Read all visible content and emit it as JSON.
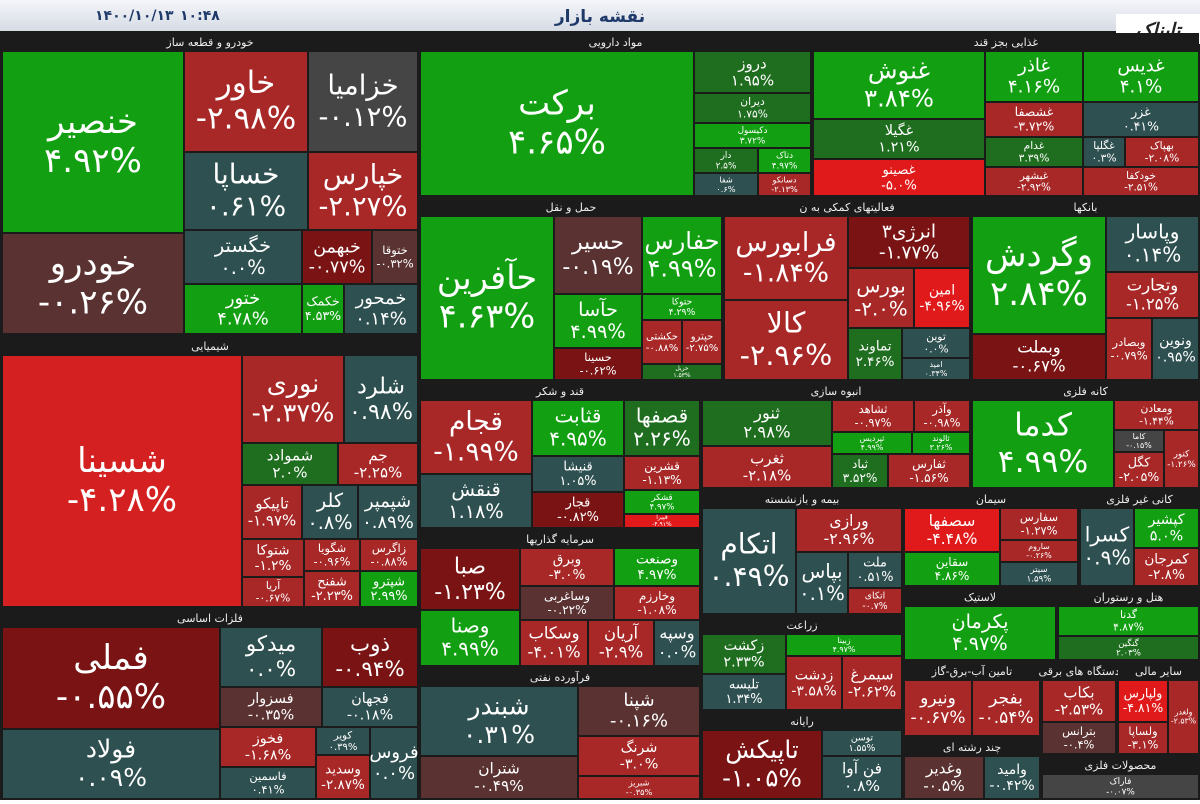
{
  "header": {
    "title": "نقشه بازار",
    "date": "۱۴۰۰/۱۰/۱۳",
    "time": "۱۰:۴۸",
    "logo": "تابناک"
  },
  "sectors": [
    {
      "name": "خودرو و قطعه ساز",
      "tiles": [
        {
          "name": "خنصیر",
          "change": "۴.۹۲%"
        },
        {
          "name": "خودرو",
          "change": "-۰.۲۶%"
        },
        {
          "name": "خاور",
          "change": "-۲.۹۸%"
        },
        {
          "name": "خزامیا",
          "change": "-۰.۱۲%"
        },
        {
          "name": "خساپا",
          "change": "۰.۶۱%"
        },
        {
          "name": "خپارس",
          "change": "-۲.۲۷%"
        },
        {
          "name": "خگستر",
          "change": "۰.۰%"
        },
        {
          "name": "خبهمن",
          "change": "-۰.۷۷%"
        },
        {
          "name": "ختوقا",
          "change": "-۰.۳۲%"
        },
        {
          "name": "ختور",
          "change": "۴.۷۸%"
        },
        {
          "name": "خکمک",
          "change": "۴.۵۳%"
        },
        {
          "name": "خمحور",
          "change": "۰.۱۴%"
        }
      ]
    },
    {
      "name": "مواد دارویی",
      "tiles": [
        {
          "name": "برکت",
          "change": "۴.۶۵%"
        },
        {
          "name": "دروز",
          "change": "۱.۹۵%"
        },
        {
          "name": "دیران",
          "change": "۱.۷۵%"
        },
        {
          "name": "دکیسول",
          "change": "۳.۷۲%"
        },
        {
          "name": "دار",
          "change": "۲.۵%"
        },
        {
          "name": "دتاک",
          "change": "۴.۹۷%"
        },
        {
          "name": "شفا",
          "change": "۰.۶%"
        },
        {
          "name": "دسانکو",
          "change": "-۲.۱۳%"
        }
      ]
    },
    {
      "name": "غذایی بجز قند",
      "tiles": [
        {
          "name": "غنوش",
          "change": "۳.۸۴%"
        },
        {
          "name": "غگیلا",
          "change": "۱.۲۱%"
        },
        {
          "name": "غصینو",
          "change": "-۵.۰%"
        },
        {
          "name": "غاذر",
          "change": "۴.۱۶%"
        },
        {
          "name": "غدیس",
          "change": "۴.۱%"
        },
        {
          "name": "غشصفا",
          "change": "-۳.۷۲%"
        },
        {
          "name": "غزر",
          "change": "۰.۴۱%"
        },
        {
          "name": "غدام",
          "change": "۳.۳۹%"
        },
        {
          "name": "غگلپا",
          "change": "۰.۳%"
        },
        {
          "name": "بهپاک",
          "change": "-۲.۰۸%"
        },
        {
          "name": "غبشهر",
          "change": "-۲.۹۲%"
        },
        {
          "name": "خودکفا",
          "change": "-۲.۵۱%"
        }
      ]
    },
    {
      "name": "حمل و نقل",
      "tiles": [
        {
          "name": "حآفرین",
          "change": "۴.۶۳%"
        },
        {
          "name": "حسیر",
          "change": "-۰.۱۹%"
        },
        {
          "name": "حفارس",
          "change": "۴.۹۹%"
        },
        {
          "name": "حآسا",
          "change": "۴.۹۹%"
        },
        {
          "name": "حتوکا",
          "change": "۴.۲۹%"
        },
        {
          "name": "حکشتی",
          "change": "-۰.۸۸%"
        },
        {
          "name": "حپترو",
          "change": "-۲.۷۵%"
        },
        {
          "name": "حسینا",
          "change": "-۰.۶۲%"
        },
        {
          "name": "حریل",
          "change": "۱.۵۳%"
        }
      ]
    },
    {
      "name": "فعالیتهای کمکی به ن",
      "tiles": [
        {
          "name": "فرابورس",
          "change": "-۱.۸۴%"
        },
        {
          "name": "انرژی۳",
          "change": "-۱.۷۷%"
        },
        {
          "name": "کالا",
          "change": "-۲.۹۶%"
        },
        {
          "name": "بورس",
          "change": "-۲.۰%"
        },
        {
          "name": "امین",
          "change": "-۴.۹۶%"
        },
        {
          "name": "تماوند",
          "change": "۲.۴۶%"
        },
        {
          "name": "توین",
          "change": "۰.۰%"
        },
        {
          "name": "امید",
          "change": "۰.۳۴%"
        }
      ]
    },
    {
      "name": "بانکها",
      "tiles": [
        {
          "name": "وگردش",
          "change": "۲.۸۴%"
        },
        {
          "name": "وبملت",
          "change": "-۰.۶۷%"
        },
        {
          "name": "وپاسار",
          "change": "۰.۱۴%"
        },
        {
          "name": "وتجارت",
          "change": "-۱.۲۵%"
        },
        {
          "name": "وبصادر",
          "change": "-۰.۷۹%"
        },
        {
          "name": "ونوین",
          "change": "۰.۹۵%"
        }
      ]
    },
    {
      "name": "شیمیایی",
      "tiles": [
        {
          "name": "شسینا",
          "change": "-۴.۲۸%"
        },
        {
          "name": "نوری",
          "change": "-۲.۳۷%"
        },
        {
          "name": "شلرد",
          "change": "۰.۹۸%"
        },
        {
          "name": "شموادد",
          "change": "۲.۰%"
        },
        {
          "name": "جم",
          "change": "-۲.۲۵%"
        },
        {
          "name": "تاپیکو",
          "change": "-۱.۹۷%"
        },
        {
          "name": "کلر",
          "change": "۰.۸%"
        },
        {
          "name": "شپمپر",
          "change": "۰.۸۹%"
        },
        {
          "name": "شتوکا",
          "change": "-۱.۲%"
        },
        {
          "name": "شگویا",
          "change": "-۰.۹۶%"
        },
        {
          "name": "زاگرس",
          "change": "-۰.۸۸%"
        },
        {
          "name": "آریا",
          "change": "-۰.۶۷%"
        },
        {
          "name": "شفنح",
          "change": "-۲.۲۳%"
        },
        {
          "name": "شپترو",
          "change": "۲.۹۹%"
        }
      ]
    },
    {
      "name": "فلزات اساسی",
      "tiles": [
        {
          "name": "فملی",
          "change": "-۰.۵۵%"
        },
        {
          "name": "فولاد",
          "change": "۰.۰۹%"
        },
        {
          "name": "میدکو",
          "change": "۰.۰%"
        },
        {
          "name": "ذوب",
          "change": "-۰.۹۴%"
        },
        {
          "name": "فسزوار",
          "change": "-۰.۳۵%"
        },
        {
          "name": "فجهان",
          "change": "-۰.۱۸%"
        },
        {
          "name": "فخوز",
          "change": "-۱.۶۸%"
        },
        {
          "name": "کویر",
          "change": "۰.۳۹%"
        },
        {
          "name": "فاسمین",
          "change": "۰.۴۱%"
        },
        {
          "name": "وسدید",
          "change": "-۲.۸۷%"
        },
        {
          "name": "فروس",
          "change": "۰.۰%"
        }
      ]
    },
    {
      "name": "قند و شکر",
      "tiles": [
        {
          "name": "قجام",
          "change": "-۱.۹۹%"
        },
        {
          "name": "قنقش",
          "change": "۱.۱۸%"
        },
        {
          "name": "قثابت",
          "change": "۴.۹۵%"
        },
        {
          "name": "قصفها",
          "change": "۲.۲۶%"
        },
        {
          "name": "قنیشا",
          "change": "۱.۰۵%"
        },
        {
          "name": "قشرین",
          "change": "-۱.۱۳%"
        },
        {
          "name": "قجار",
          "change": "-۰.۸۲%"
        },
        {
          "name": "قشکر",
          "change": "۴.۹۷%"
        },
        {
          "name": "قپیرا",
          "change": "-۴.۹۱%"
        }
      ]
    },
    {
      "name": "انبوه سازی",
      "tiles": [
        {
          "name": "ثنور",
          "change": "۲.۹۸%"
        },
        {
          "name": "ثغرب",
          "change": "-۲.۱۸%"
        },
        {
          "name": "ثشاهد",
          "change": "-۰.۹۷%"
        },
        {
          "name": "وآذر",
          "change": "-۰.۹۸%"
        },
        {
          "name": "ثپردیس",
          "change": "۴.۹۹%"
        },
        {
          "name": "ثالوند",
          "change": "۳.۲۶%"
        },
        {
          "name": "ثباد",
          "change": "۳.۵۲%"
        },
        {
          "name": "ثفارس",
          "change": "-۱.۵۶%"
        }
      ]
    },
    {
      "name": "کانه فلزی",
      "tiles": [
        {
          "name": "کدما",
          "change": "۴.۹۹%"
        },
        {
          "name": "ومعادن",
          "change": "-۱.۴۴%"
        },
        {
          "name": "کاما",
          "change": "-۰.۱۵%"
        },
        {
          "name": "کگل",
          "change": "-۲.۰۵%"
        },
        {
          "name": "کنور",
          "change": "-۱.۲۶%"
        }
      ]
    },
    {
      "name": "سرمایه گذاریها",
      "tiles": [
        {
          "name": "صبا",
          "change": "-۱.۲۳%"
        },
        {
          "name": "وصنا",
          "change": "۴.۹۹%"
        },
        {
          "name": "وبرق",
          "change": "-۳.۰%"
        },
        {
          "name": "وصنعت",
          "change": "۴.۹۷%"
        },
        {
          "name": "وساغربی",
          "change": "-۰.۲۲%"
        },
        {
          "name": "وخارزم",
          "change": "-۱.۰۸%"
        },
        {
          "name": "وسکاب",
          "change": "-۴.۰۱%"
        },
        {
          "name": "آریان",
          "change": "-۲.۹%"
        },
        {
          "name": "وسپه",
          "change": "۰.۰%"
        }
      ]
    },
    {
      "name": "فرآورده نفتی",
      "tiles": [
        {
          "name": "شبندر",
          "change": "۰.۳۱%"
        },
        {
          "name": "شتران",
          "change": "-۰.۴۹%"
        },
        {
          "name": "شپنا",
          "change": "-۰.۱۶%"
        },
        {
          "name": "شرنگ",
          "change": "-۳.۰%"
        },
        {
          "name": "شبریز",
          "change": "-۰.۳۵%"
        }
      ]
    },
    {
      "name": "بیمه و بازنشسته",
      "tiles": [
        {
          "name": "اتکام",
          "change": "۰.۴۹%"
        },
        {
          "name": "ورازی",
          "change": "-۲.۹۶%"
        },
        {
          "name": "بپاس",
          "change": "۰.۱%"
        },
        {
          "name": "ملت",
          "change": "۰.۵۱%"
        },
        {
          "name": "اتکای",
          "change": "-۰.۷%"
        }
      ]
    },
    {
      "name": "سیمان",
      "tiles": [
        {
          "name": "سصفها",
          "change": "-۴.۴۸%"
        },
        {
          "name": "سفارس",
          "change": "-۱.۲۷%"
        },
        {
          "name": "سقاین",
          "change": "۴.۸۶%"
        },
        {
          "name": "ساروم",
          "change": "-۰.۲۶%"
        },
        {
          "name": "سیتر",
          "change": "۱.۵۹%"
        }
      ]
    },
    {
      "name": "کانی غیر فلزی",
      "tiles": [
        {
          "name": "کسرا",
          "change": "۰.۹%"
        },
        {
          "name": "کپشیر",
          "change": "۵.۰%"
        },
        {
          "name": "کمرجان",
          "change": "-۲.۸%"
        }
      ]
    },
    {
      "name": "لاستیک",
      "tiles": [
        {
          "name": "پکرمان",
          "change": "۴.۹۷%"
        }
      ]
    },
    {
      "name": "هتل و رستوران",
      "tiles": [
        {
          "name": "گدنا",
          "change": "۴.۸۷%"
        },
        {
          "name": "گنگین",
          "change": "۲.۰۳%"
        }
      ]
    },
    {
      "name": "زراعت",
      "tiles": [
        {
          "name": "زکشت",
          "change": "۲.۳۳%"
        },
        {
          "name": "تلیسه",
          "change": "۱.۳۴%"
        },
        {
          "name": "زبینا",
          "change": "۴.۹۷%"
        },
        {
          "name": "زدشت",
          "change": "-۳.۵۸%"
        },
        {
          "name": "سیمرغ",
          "change": "-۲.۶۲%"
        }
      ]
    },
    {
      "name": "رایانه",
      "tiles": [
        {
          "name": "تاپیکش",
          "change": "-۱.۰۵%"
        },
        {
          "name": "توسن",
          "change": "۱.۵۵%"
        },
        {
          "name": "فن آوا",
          "change": "۰.۸%"
        }
      ]
    },
    {
      "name": "تامین آب-برق-گاز",
      "tiles": [
        {
          "name": "ونیرو",
          "change": "-۰.۶۷%"
        },
        {
          "name": "بفجر",
          "change": "-۰.۵۴%"
        }
      ]
    },
    {
      "name": "دستگاه های برقی",
      "tiles": [
        {
          "name": "بکاب",
          "change": "-۲.۵۳%"
        },
        {
          "name": "بترانس",
          "change": "-۰.۴%"
        }
      ]
    },
    {
      "name": "سایر مالی",
      "tiles": [
        {
          "name": "ولپارس",
          "change": "-۴.۸۱%"
        },
        {
          "name": "ولغدر",
          "change": "-۲.۵۳%"
        },
        {
          "name": "ولساپا",
          "change": "-۳.۱%"
        }
      ]
    },
    {
      "name": "چند رشته ای",
      "tiles": [
        {
          "name": "وغدیر",
          "change": "-۰.۵%"
        },
        {
          "name": "وامید",
          "change": "-۰.۴۲%"
        }
      ]
    },
    {
      "name": "محصولات فلزی",
      "tiles": [
        {
          "name": "فاراک",
          "change": "-۰.۰۷%"
        }
      ]
    }
  ]
}
